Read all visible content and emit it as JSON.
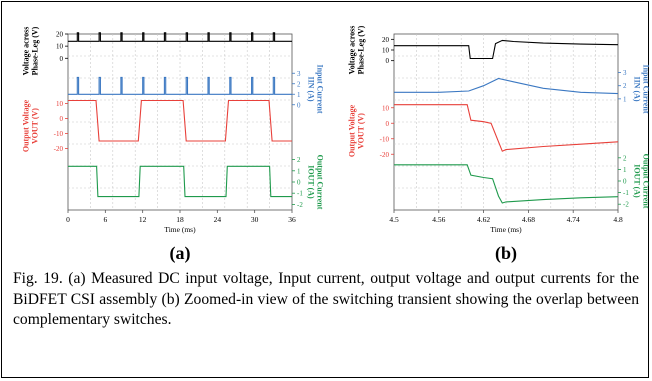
{
  "caption": "Fig. 19. (a) Measured DC input voltage, Input current, output voltage and output currents for the BiDFET CSI assembly (b) Zoomed-in view of the switching transient showing the overlap between complementary switches.",
  "chart_data": [
    {
      "panel_label": "(a)",
      "type": "line",
      "xlabel": "Time (ms)",
      "xlim": [
        0,
        36
      ],
      "x_ticks": [
        0,
        6,
        12,
        18,
        24,
        30,
        36
      ],
      "grid": true,
      "series": [
        {
          "name": "Voltage across Phase-Leg (V)",
          "color": "#000000",
          "axis": "left",
          "ticks": [
            20,
            10,
            0
          ],
          "ylim": [
            -8,
            20
          ],
          "x": [
            0,
            1.5,
            1.5,
            1.7,
            1.7,
            5.0,
            5.0,
            5.2,
            5.2,
            8.5,
            8.5,
            8.7,
            8.7,
            12.0,
            12.0,
            12.2,
            12.2,
            15.5,
            15.5,
            15.7,
            15.7,
            19.0,
            19.0,
            19.2,
            19.2,
            22.5,
            22.5,
            22.7,
            22.7,
            26.0,
            26.0,
            26.2,
            26.2,
            29.5,
            29.5,
            29.7,
            29.7,
            33.0,
            33.0,
            33.2,
            33.2,
            36
          ],
          "y": [
            14,
            14,
            21,
            21,
            14,
            14,
            21,
            21,
            14,
            14,
            21,
            21,
            14,
            14,
            21,
            21,
            14,
            14,
            21,
            21,
            14,
            14,
            21,
            21,
            14,
            14,
            21,
            21,
            14,
            14,
            21,
            21,
            14,
            14,
            21,
            21,
            14,
            14,
            21,
            21,
            14,
            14
          ]
        },
        {
          "name": "Input Current",
          "label_sub": "IIN (A)",
          "color": "#3b78c2",
          "axis": "right",
          "ticks": [
            3,
            2,
            1,
            0
          ],
          "ylim": [
            -0.5,
            3.5
          ],
          "x": [
            0,
            1.5,
            1.5,
            1.7,
            1.7,
            5.0,
            5.0,
            5.2,
            5.2,
            8.5,
            8.5,
            8.7,
            8.7,
            12.0,
            12.0,
            12.2,
            12.2,
            15.5,
            15.5,
            15.7,
            15.7,
            19.0,
            19.0,
            19.2,
            19.2,
            22.5,
            22.5,
            22.7,
            22.7,
            26.0,
            26.0,
            26.2,
            26.2,
            29.5,
            29.5,
            29.7,
            29.7,
            33.0,
            33.0,
            33.2,
            33.2,
            36
          ],
          "y": [
            1.0,
            1.0,
            2.6,
            2.6,
            1.0,
            1.0,
            2.6,
            2.6,
            1.0,
            1.0,
            2.6,
            2.6,
            1.0,
            1.0,
            2.6,
            2.6,
            1.0,
            1.0,
            2.6,
            2.6,
            1.0,
            1.0,
            2.6,
            2.6,
            1.0,
            1.0,
            2.6,
            2.6,
            1.0,
            1.0,
            2.6,
            2.6,
            1.0,
            1.0,
            2.6,
            2.6,
            1.0,
            1.0,
            2.6,
            2.6,
            1.0,
            1.0
          ]
        },
        {
          "name": "Output Voltage",
          "label_sub": "VOUT (V)",
          "color": "#e8403a",
          "axis": "left",
          "ticks": [
            10,
            0,
            -10,
            -20
          ],
          "ylim": [
            -25,
            15
          ],
          "x": [
            0,
            4.5,
            5.0,
            11.3,
            11.8,
            18.5,
            19.0,
            25.3,
            25.8,
            32.3,
            32.8,
            36
          ],
          "y": [
            12,
            12,
            -15,
            -15,
            12,
            12,
            -15,
            -15,
            12,
            12,
            -15,
            -15
          ]
        },
        {
          "name": "Output Current",
          "label_sub": "IOUT (A)",
          "color": "#1f9a4c",
          "axis": "right",
          "ticks": [
            2,
            1,
            0,
            -1,
            -2
          ],
          "ylim": [
            -2.5,
            2.5
          ],
          "x": [
            0,
            4.6,
            4.8,
            11.4,
            11.6,
            18.6,
            18.8,
            25.4,
            25.6,
            32.4,
            32.6,
            36
          ],
          "y": [
            1.4,
            1.4,
            -1.3,
            -1.3,
            1.4,
            1.4,
            -1.3,
            -1.3,
            1.4,
            1.4,
            -1.3,
            -1.3
          ]
        }
      ]
    },
    {
      "panel_label": "(b)",
      "type": "line",
      "xlabel": "Time (ms)",
      "xlim": [
        4.5,
        4.8
      ],
      "x_ticks": [
        4.5,
        4.56,
        4.62,
        4.68,
        4.74,
        4.8
      ],
      "grid": true,
      "series": [
        {
          "name": "Voltage across Phase-Leg (V)",
          "color": "#000000",
          "axis": "left",
          "ticks": [
            20,
            10,
            0
          ],
          "ylim": [
            -5,
            25
          ],
          "x": [
            4.5,
            4.6,
            4.602,
            4.632,
            4.636,
            4.645,
            4.66,
            4.7,
            4.75,
            4.8
          ],
          "y": [
            14,
            14,
            2,
            2,
            16,
            19,
            18,
            16.5,
            15.5,
            15
          ]
        },
        {
          "name": "Input Current",
          "label_sub": "IIN (A)",
          "color": "#3b78c2",
          "axis": "right",
          "ticks": [
            3,
            2,
            1
          ],
          "ylim": [
            0,
            3.5
          ],
          "x": [
            4.5,
            4.56,
            4.6,
            4.62,
            4.64,
            4.66,
            4.7,
            4.75,
            4.8
          ],
          "y": [
            1.5,
            1.5,
            1.6,
            2.0,
            2.55,
            2.3,
            1.8,
            1.5,
            1.4
          ]
        },
        {
          "name": "Output Voltage",
          "label_sub": "VOUT (V)",
          "color": "#e8403a",
          "axis": "left",
          "ticks": [
            10,
            0,
            -10,
            -20
          ],
          "ylim": [
            -25,
            15
          ],
          "x": [
            4.5,
            4.598,
            4.603,
            4.62,
            4.63,
            4.64,
            4.645,
            4.65,
            4.7,
            4.75,
            4.8
          ],
          "y": [
            12,
            12,
            2,
            1,
            0,
            -12,
            -18,
            -17,
            -15,
            -13.5,
            -12
          ]
        },
        {
          "name": "Output Current",
          "label_sub": "IOUT (A)",
          "color": "#1f9a4c",
          "axis": "right",
          "ticks": [
            2,
            1,
            0,
            -1,
            -2
          ],
          "ylim": [
            -2.5,
            2.5
          ],
          "x": [
            4.5,
            4.598,
            4.603,
            4.62,
            4.632,
            4.64,
            4.645,
            4.65,
            4.7,
            4.75,
            4.8
          ],
          "y": [
            1.4,
            1.4,
            0.5,
            0.3,
            0.2,
            -1.3,
            -1.9,
            -1.8,
            -1.6,
            -1.45,
            -1.35
          ]
        }
      ]
    }
  ]
}
